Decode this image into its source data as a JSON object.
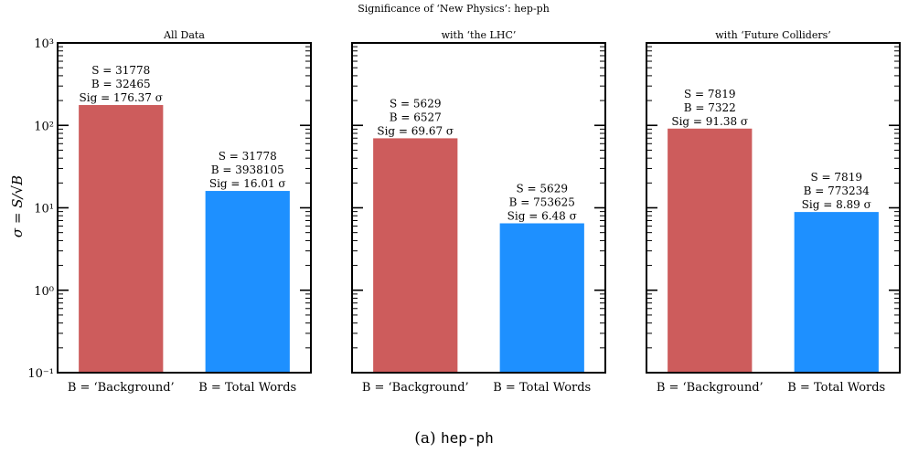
{
  "figure": {
    "suptitle": "Significance of ‘New Physics’: hep-ph",
    "ylabel": "σ = S/√B",
    "caption_prefix": "(a)",
    "caption_code": "hep-ph",
    "ytick_labels": [
      "10⁻¹",
      "10⁰",
      "10¹",
      "10²",
      "10³"
    ]
  },
  "colors": {
    "background_bar": "#cd5c5c",
    "total_words_bar": "#1e90ff"
  },
  "chart_data": [
    {
      "type": "bar",
      "title": "All Data",
      "categories": [
        "B = ‘Background’",
        "B = Total Words"
      ],
      "values": [
        176.37,
        16.01
      ],
      "yscale": "log",
      "ylim": [
        0.1,
        1000
      ],
      "annotations": [
        [
          "S = 31778",
          "B = 32465",
          "Sig = 176.37 σ"
        ],
        [
          "S = 31778",
          "B = 3938105",
          "Sig = 16.01 σ"
        ]
      ]
    },
    {
      "type": "bar",
      "title": "with ‘the LHC’",
      "categories": [
        "B = ‘Background’",
        "B = Total Words"
      ],
      "values": [
        69.67,
        6.48
      ],
      "yscale": "log",
      "ylim": [
        0.1,
        1000
      ],
      "annotations": [
        [
          "S = 5629",
          "B = 6527",
          "Sig = 69.67 σ"
        ],
        [
          "S = 5629",
          "B = 753625",
          "Sig = 6.48 σ"
        ]
      ]
    },
    {
      "type": "bar",
      "title": "with ‘Future Colliders’",
      "categories": [
        "B = ‘Background’",
        "B = Total Words"
      ],
      "values": [
        91.38,
        8.89
      ],
      "yscale": "log",
      "ylim": [
        0.1,
        1000
      ],
      "annotations": [
        [
          "S = 7819",
          "B = 7322",
          "Sig = 91.38 σ"
        ],
        [
          "S = 7819",
          "B = 773234",
          "Sig = 8.89 σ"
        ]
      ]
    }
  ]
}
